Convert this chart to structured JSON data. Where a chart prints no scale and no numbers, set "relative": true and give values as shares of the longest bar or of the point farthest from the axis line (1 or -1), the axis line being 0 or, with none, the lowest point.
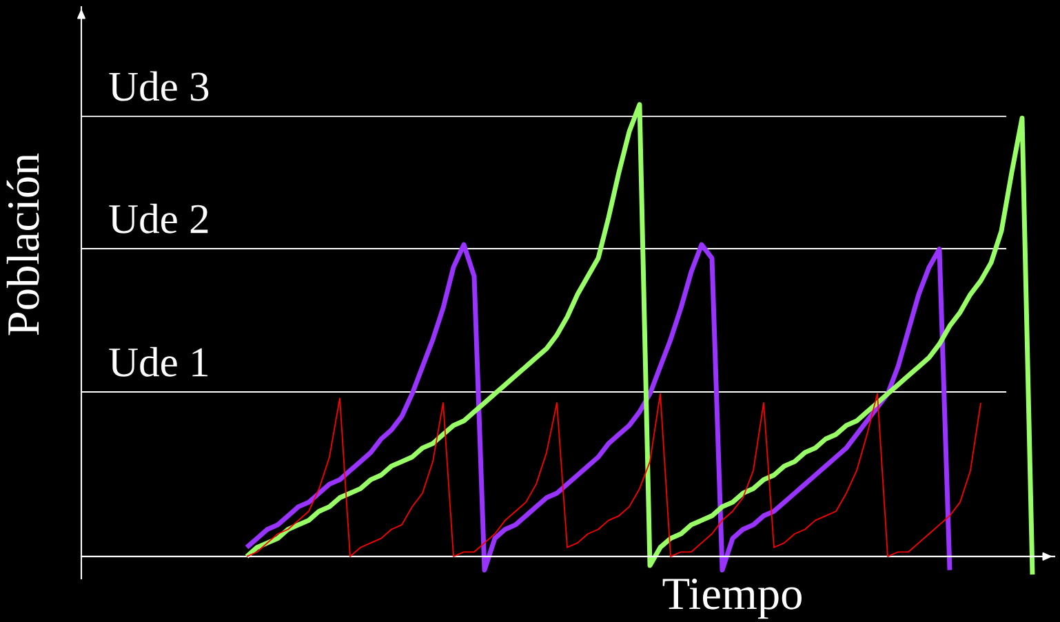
{
  "chart_data": {
    "type": "line",
    "relative": true,
    "xlabel": "Tiempo",
    "ylabel": "Población",
    "legend": false,
    "categories": [
      null,
      null,
      null,
      null,
      null,
      null,
      null,
      null,
      null,
      null,
      null,
      null,
      null,
      null,
      null,
      null,
      null,
      null,
      null,
      null,
      null,
      null,
      null,
      null,
      null,
      null,
      null,
      null,
      null,
      null,
      null,
      null,
      null,
      null,
      null,
      null,
      null,
      null,
      null,
      null,
      null,
      null,
      null,
      null,
      null,
      null,
      null,
      null,
      null,
      null,
      null,
      null,
      null,
      null,
      null,
      null,
      null,
      null,
      null,
      null,
      null,
      null,
      null,
      null,
      null,
      null,
      null,
      null,
      null,
      null,
      null,
      null,
      null,
      null,
      null,
      null,
      null,
      null,
      null,
      null,
      null,
      null,
      null,
      null,
      null,
      null,
      null,
      null,
      null,
      null,
      null,
      null,
      null,
      null
    ],
    "ref_lines": [
      {
        "axis": "y",
        "value": 0.364,
        "label": "Ude 1",
        "color": "#ffffff"
      },
      {
        "axis": "y",
        "value": 0.681,
        "label": "Ude 2",
        "color": "#ffffff"
      },
      {
        "axis": "y",
        "value": 0.974,
        "label": "Ude 3",
        "color": "#ffffff"
      }
    ],
    "series": [
      {
        "color": "#ff0000",
        "values": [
          null,
          null,
          null,
          null,
          null,
          null,
          null,
          null,
          null,
          null,
          null,
          null,
          null,
          null,
          null,
          null,
          0.0,
          0.01,
          0.03,
          0.05,
          0.06,
          0.08,
          0.1,
          0.15,
          0.22,
          0.35,
          0.0,
          0.02,
          0.03,
          0.04,
          0.06,
          0.07,
          0.11,
          0.14,
          0.21,
          0.34,
          0.0,
          0.01,
          0.01,
          0.03,
          0.05,
          0.08,
          0.1,
          0.12,
          0.16,
          0.23,
          0.34,
          0.02,
          0.03,
          0.05,
          0.06,
          0.08,
          0.09,
          0.11,
          0.15,
          0.21,
          0.36,
          0.0,
          0.01,
          0.01,
          0.03,
          0.05,
          0.08,
          0.1,
          0.13,
          0.19,
          0.34,
          0.02,
          0.03,
          0.05,
          0.06,
          0.08,
          0.09,
          0.1,
          0.14,
          0.19,
          0.27,
          0.36,
          0.0,
          0.01,
          0.01,
          0.03,
          0.05,
          0.07,
          0.09,
          0.12,
          0.19,
          0.34,
          null,
          null,
          null,
          null,
          null,
          null
        ]
      },
      {
        "color": "#9933ff",
        "values": [
          null,
          null,
          null,
          null,
          null,
          null,
          null,
          null,
          null,
          null,
          null,
          null,
          null,
          null,
          null,
          null,
          0.02,
          0.04,
          0.06,
          0.07,
          0.09,
          0.11,
          0.12,
          0.14,
          0.16,
          0.17,
          0.19,
          0.21,
          0.23,
          0.26,
          0.28,
          0.31,
          0.36,
          0.42,
          0.48,
          0.55,
          0.64,
          0.69,
          0.62,
          -0.03,
          0.04,
          0.06,
          0.07,
          0.09,
          0.11,
          0.13,
          0.14,
          0.16,
          0.18,
          0.2,
          0.22,
          0.25,
          0.27,
          0.29,
          0.32,
          0.36,
          0.42,
          0.48,
          0.55,
          0.63,
          0.69,
          0.66,
          -0.03,
          0.04,
          0.06,
          0.07,
          0.09,
          0.1,
          0.12,
          0.14,
          0.16,
          0.18,
          0.2,
          0.22,
          0.24,
          0.27,
          0.3,
          0.33,
          0.36,
          0.42,
          0.5,
          0.58,
          0.64,
          0.68,
          -0.03,
          null,
          null,
          null,
          null,
          null,
          null,
          null,
          null,
          null
        ]
      },
      {
        "color": "#99ff66",
        "values": [
          null,
          null,
          null,
          null,
          null,
          null,
          null,
          null,
          null,
          null,
          null,
          null,
          null,
          null,
          null,
          null,
          0.0,
          0.02,
          0.03,
          0.04,
          0.06,
          0.07,
          0.08,
          0.1,
          0.11,
          0.13,
          0.14,
          0.15,
          0.17,
          0.18,
          0.2,
          0.21,
          0.22,
          0.24,
          0.25,
          0.27,
          0.29,
          0.3,
          0.32,
          0.34,
          0.36,
          0.38,
          0.4,
          0.42,
          0.44,
          0.46,
          0.49,
          0.53,
          0.58,
          0.62,
          0.66,
          0.75,
          0.85,
          0.94,
          1.0,
          -0.02,
          0.02,
          0.04,
          0.05,
          0.07,
          0.08,
          0.09,
          0.11,
          0.12,
          0.14,
          0.15,
          0.17,
          0.18,
          0.2,
          0.21,
          0.23,
          0.24,
          0.26,
          0.27,
          0.29,
          0.3,
          0.32,
          0.34,
          0.36,
          0.38,
          0.4,
          0.42,
          0.44,
          0.47,
          0.51,
          0.54,
          0.58,
          0.61,
          0.65,
          0.72,
          0.85,
          0.97,
          -0.04,
          null
        ]
      }
    ]
  }
}
